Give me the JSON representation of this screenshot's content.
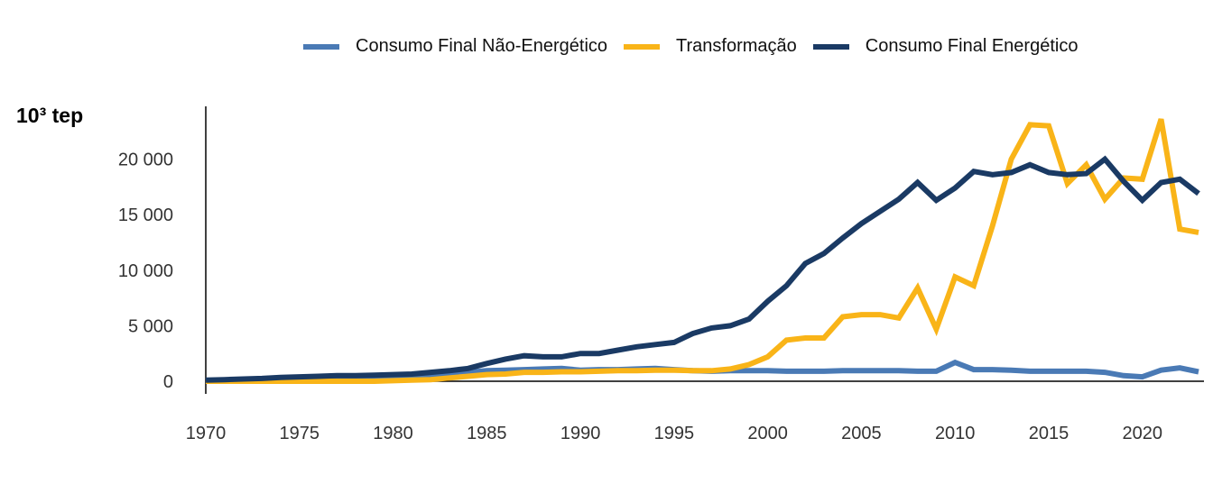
{
  "chart_data": {
    "type": "line",
    "ylabel": "10³ tep",
    "ylim": [
      0,
      24500
    ],
    "xlim": [
      1970,
      2023
    ],
    "yticks": [
      0,
      5000,
      10000,
      15000,
      20000
    ],
    "ytick_labels": [
      "0",
      "5 000",
      "10 000",
      "15 000",
      "20 000"
    ],
    "xticks": [
      1970,
      1975,
      1980,
      1985,
      1990,
      1995,
      2000,
      2005,
      2010,
      2015,
      2020
    ],
    "xtick_labels": [
      "1970",
      "1975",
      "1980",
      "1985",
      "1990",
      "1995",
      "2000",
      "2005",
      "2010",
      "2015",
      "2020"
    ],
    "grid": false,
    "legend_position": "top",
    "x": [
      1970,
      1971,
      1972,
      1973,
      1974,
      1975,
      1976,
      1977,
      1978,
      1979,
      1980,
      1981,
      1982,
      1983,
      1984,
      1985,
      1986,
      1987,
      1988,
      1989,
      1990,
      1991,
      1992,
      1993,
      1994,
      1995,
      1996,
      1997,
      1998,
      1999,
      2000,
      2001,
      2002,
      2003,
      2004,
      2005,
      2006,
      2007,
      2008,
      2009,
      2010,
      2011,
      2012,
      2013,
      2014,
      2015,
      2016,
      2017,
      2018,
      2019,
      2020,
      2021,
      2022,
      2023
    ],
    "series": [
      {
        "name": "Consumo Final Não-Energético",
        "color": "#4a7ab5",
        "values": [
          50,
          60,
          70,
          80,
          150,
          200,
          220,
          300,
          320,
          350,
          400,
          450,
          550,
          650,
          800,
          950,
          1000,
          1050,
          1100,
          1150,
          1000,
          1050,
          1050,
          1100,
          1150,
          1050,
          950,
          900,
          950,
          950,
          950,
          900,
          900,
          900,
          950,
          950,
          950,
          950,
          900,
          900,
          1700,
          1050,
          1050,
          1000,
          900,
          900,
          900,
          900,
          800,
          500,
          400,
          1000,
          1200,
          850
        ]
      },
      {
        "name": "Transformação",
        "color": "#f9b418",
        "values": [
          0,
          0,
          0,
          0,
          0,
          0,
          0,
          0,
          0,
          0,
          50,
          100,
          150,
          300,
          450,
          600,
          650,
          800,
          800,
          850,
          850,
          900,
          950,
          950,
          1000,
          1000,
          950,
          950,
          1100,
          1500,
          2200,
          3700,
          3900,
          3900,
          5800,
          6000,
          6000,
          5700,
          8400,
          4700,
          9400,
          8600,
          14000,
          20000,
          23100,
          23000,
          17800,
          19500,
          16400,
          18300,
          18200,
          23600,
          13700,
          13400
        ]
      },
      {
        "name": "Consumo Final Energético",
        "color": "#1a3a64",
        "values": [
          100,
          150,
          200,
          250,
          350,
          400,
          450,
          500,
          500,
          550,
          600,
          650,
          800,
          950,
          1150,
          1600,
          2000,
          2300,
          2200,
          2200,
          2500,
          2500,
          2800,
          3100,
          3300,
          3500,
          4300,
          4800,
          5000,
          5600,
          7200,
          8600,
          10600,
          11500,
          12900,
          14200,
          15300,
          16400,
          17900,
          16300,
          17400,
          18900,
          18600,
          18800,
          19500,
          18800,
          18600,
          18700,
          20000,
          18000,
          16300,
          17900,
          18200,
          16900
        ]
      }
    ]
  }
}
